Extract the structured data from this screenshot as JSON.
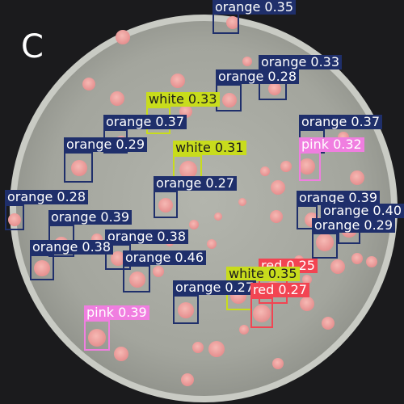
{
  "panel_label": "C",
  "colors": {
    "background": "#1b1b1d",
    "agar": "#a8aaa2",
    "colony": "#f1a7a4",
    "orange_box": "#1f2f6b",
    "white_box": "#c8dc1c",
    "pink_box": "#f07ee0",
    "red_box": "#f24452"
  },
  "detections": [
    {
      "class": "orange",
      "text": "orange 0.35"
    },
    {
      "class": "orange",
      "text": "orange 0.33"
    },
    {
      "class": "orange",
      "text": "orange 0.28"
    },
    {
      "class": "white",
      "text": "white 0.33"
    },
    {
      "class": "orange",
      "text": "orange 0.37"
    },
    {
      "class": "orange",
      "text": "orange 0.37"
    },
    {
      "class": "pink",
      "text": "pink 0.32"
    },
    {
      "class": "orange",
      "text": "orange 0.29"
    },
    {
      "class": "white",
      "text": "white 0.31"
    },
    {
      "class": "orange",
      "text": "orange 0.27"
    },
    {
      "class": "orange",
      "text": "orange 0.28"
    },
    {
      "class": "orange",
      "text": "orange 0.39"
    },
    {
      "class": "orange",
      "text": "orange 0.40"
    },
    {
      "class": "orange",
      "text": "orange 0.29"
    },
    {
      "class": "orange",
      "text": "orange 0.39"
    },
    {
      "class": "orange",
      "text": "orange 0.38"
    },
    {
      "class": "orange",
      "text": "orange 0.38"
    },
    {
      "class": "orange",
      "text": "orange 0.46"
    },
    {
      "class": "red",
      "text": "red 0.25"
    },
    {
      "class": "white",
      "text": "white 0.35"
    },
    {
      "class": "orange",
      "text": "orange 0.27"
    },
    {
      "class": "red",
      "text": "red 0.27"
    },
    {
      "class": "pink",
      "text": "pink 0.39"
    }
  ]
}
